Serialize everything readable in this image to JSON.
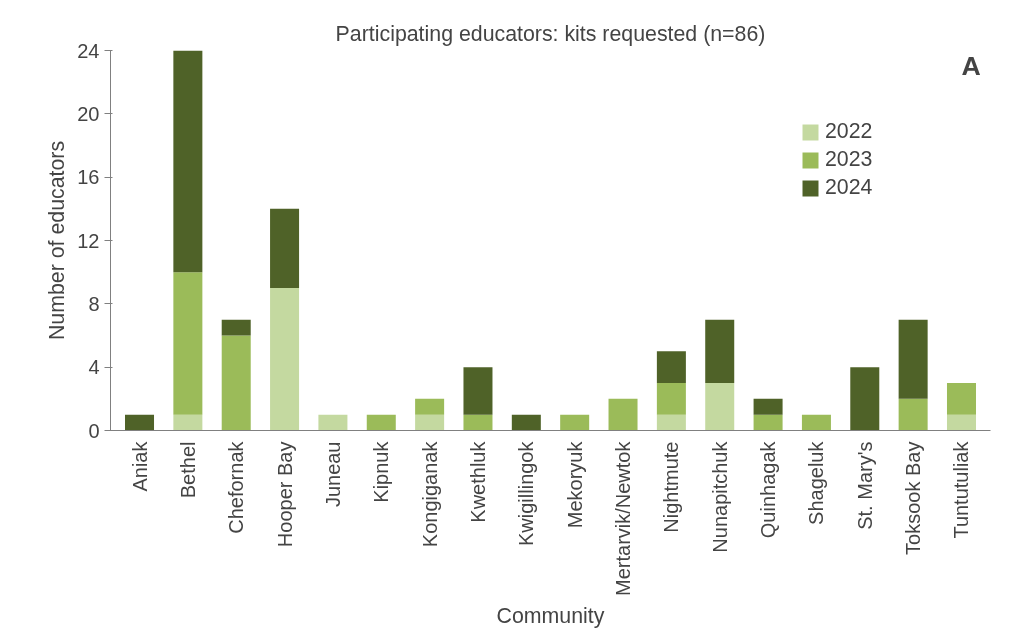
{
  "chart_data": {
    "type": "bar",
    "title": "Participating educators: kits requested (n=86)",
    "xlabel": "Community",
    "ylabel": "Number of educators",
    "annotations": [
      "A"
    ],
    "categories": [
      "Aniak",
      "Bethel",
      "Chefornak",
      "Hooper Bay",
      "Juneau",
      "Kipnuk",
      "Kongiganak",
      "Kwethluk",
      "Kwigillingok",
      "Mekoryuk",
      "Mertarvik/Newtok",
      "Nightmute",
      "Nunapitchuk",
      "Quinhagak",
      "Shageluk",
      "St. Mary's",
      "Toksook Bay",
      "Tuntutuliak"
    ],
    "stacked": true,
    "series": [
      {
        "name": "2022",
        "color": "#c4d9a0",
        "values": [
          0,
          1,
          0,
          9,
          1,
          0,
          1,
          0,
          0,
          0,
          0,
          1,
          3,
          0,
          0,
          0,
          0,
          1
        ]
      },
      {
        "name": "2023",
        "color": "#9bbb59",
        "values": [
          0,
          9,
          6,
          0,
          0,
          1,
          1,
          1,
          0,
          1,
          2,
          2,
          0,
          1,
          1,
          0,
          2,
          2
        ]
      },
      {
        "name": "2024",
        "color": "#4f6228",
        "values": [
          1,
          14,
          1,
          5,
          0,
          0,
          0,
          3,
          1,
          0,
          0,
          2,
          4,
          1,
          0,
          4,
          5,
          0
        ]
      }
    ],
    "ylim": [
      0,
      24
    ],
    "yticks": [
      0,
      4,
      8,
      12,
      16,
      20,
      24
    ],
    "grid": false,
    "legend": "top right"
  }
}
